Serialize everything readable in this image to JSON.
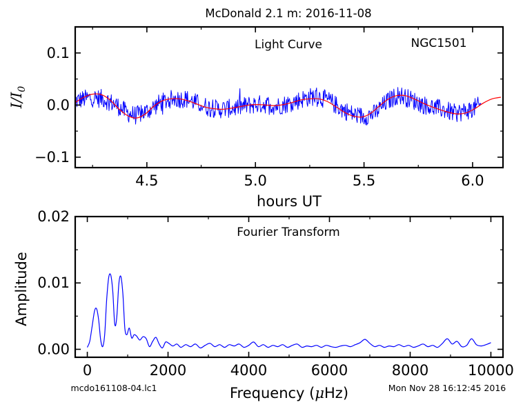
{
  "page": {
    "title": "McDonald 2.1 m:  2016-11-08",
    "footer_left": "mcdo161108-04.lc1",
    "footer_right": "Mon Nov 28 16:12:45 2016"
  },
  "chart_data": [
    {
      "type": "line",
      "title": "Light Curve",
      "annotation": "NGC1501",
      "xlabel": "hours UT",
      "ylabel_main": "I/I",
      "ylabel_sub": "0",
      "xlim": [
        4.17,
        6.14
      ],
      "ylim": [
        -0.12,
        0.15
      ],
      "xticks": [
        4.5,
        5.0,
        5.5,
        6.0
      ],
      "xticklabels": [
        "4.5",
        "5.0",
        "5.5",
        "6.0"
      ],
      "yticks": [
        -0.1,
        0.0,
        0.1
      ],
      "yticklabels": [
        "−0.1",
        "0.0",
        "0.1"
      ],
      "grid": false,
      "data_range": [
        4.17,
        6.04
      ],
      "noise_amplitude": 0.018,
      "series": [
        {
          "role": "observed light curve",
          "color": "#0000ff",
          "x": [
            4.17,
            4.24,
            4.3,
            4.36,
            4.41,
            4.45,
            4.5,
            4.56,
            4.62,
            4.68,
            4.73,
            4.78,
            4.83,
            4.9,
            4.97,
            5.04,
            5.1,
            5.16,
            5.22,
            5.28,
            5.34,
            5.4,
            5.45,
            5.5,
            5.55,
            5.61,
            5.66,
            5.72,
            5.79,
            5.86,
            5.92,
            5.98,
            6.04
          ],
          "y": [
            0.008,
            0.014,
            0.012,
            0.0,
            -0.015,
            -0.02,
            -0.012,
            0.004,
            0.012,
            0.012,
            0.004,
            -0.004,
            -0.008,
            -0.006,
            0.0,
            0.002,
            -0.002,
            0.004,
            0.012,
            0.018,
            0.008,
            -0.008,
            -0.018,
            -0.022,
            -0.016,
            0.008,
            0.02,
            0.01,
            -0.002,
            -0.008,
            -0.016,
            -0.01,
            0.0
          ]
        },
        {
          "role": "sinusoid fit",
          "color": "#ff0000",
          "x": [
            4.17,
            4.21,
            4.25,
            4.29,
            4.33,
            4.37,
            4.41,
            4.45,
            4.49,
            4.53,
            4.57,
            4.61,
            4.65,
            4.69,
            4.73,
            4.77,
            4.81,
            4.85,
            4.89,
            4.93,
            4.97,
            5.01,
            5.05,
            5.09,
            5.13,
            5.17,
            5.21,
            5.25,
            5.29,
            5.33,
            5.37,
            5.41,
            5.45,
            5.49,
            5.53,
            5.57,
            5.61,
            5.65,
            5.69,
            5.73,
            5.77,
            5.81,
            5.85,
            5.89,
            5.93,
            5.97,
            6.01,
            6.05,
            6.09,
            6.13
          ],
          "y": [
            0.005,
            0.015,
            0.021,
            0.02,
            0.01,
            -0.007,
            -0.02,
            -0.025,
            -0.018,
            -0.003,
            0.008,
            0.012,
            0.012,
            0.008,
            0.002,
            -0.004,
            -0.007,
            -0.008,
            -0.006,
            -0.003,
            0.0,
            0.001,
            0.0,
            -0.001,
            0.001,
            0.005,
            0.01,
            0.012,
            0.012,
            0.007,
            -0.003,
            -0.014,
            -0.021,
            -0.023,
            -0.016,
            -0.002,
            0.011,
            0.018,
            0.018,
            0.012,
            0.004,
            -0.003,
            -0.009,
            -0.014,
            -0.017,
            -0.015,
            -0.007,
            0.004,
            0.012,
            0.015
          ]
        }
      ]
    },
    {
      "type": "line",
      "title": "Fourier Transform",
      "xlabel_pre": "Frequency (",
      "xlabel_mu": "μ",
      "xlabel_post": "Hz)",
      "ylabel": "Amplitude",
      "xlim": [
        -300,
        10300
      ],
      "ylim": [
        -0.0012,
        0.02
      ],
      "xticks": [
        0,
        2000,
        4000,
        6000,
        8000,
        10000
      ],
      "xticklabels": [
        "0",
        "2000",
        "4000",
        "6000",
        "8000",
        "10000"
      ],
      "yticks": [
        0.0,
        0.01,
        0.02
      ],
      "yticklabels": [
        "0.00",
        "0.01",
        "0.02"
      ],
      "grid": false,
      "series": [
        {
          "role": "amplitude spectrum",
          "color": "#0000ff",
          "x": [
            0,
            60,
            120,
            180,
            230,
            280,
            330,
            380,
            430,
            480,
            530,
            580,
            630,
            680,
            730,
            780,
            830,
            880,
            930,
            980,
            1040,
            1100,
            1160,
            1220,
            1300,
            1380,
            1460,
            1540,
            1620,
            1700,
            1780,
            1860,
            1940,
            2020,
            2120,
            2220,
            2320,
            2440,
            2560,
            2680,
            2800,
            2920,
            3040,
            3160,
            3280,
            3400,
            3520,
            3640,
            3760,
            3880,
            4000,
            4120,
            4240,
            4360,
            4480,
            4600,
            4720,
            4840,
            4960,
            5080,
            5200,
            5320,
            5440,
            5560,
            5680,
            5800,
            5920,
            6040,
            6160,
            6280,
            6400,
            6520,
            6640,
            6760,
            6880,
            7000,
            7120,
            7240,
            7360,
            7480,
            7600,
            7720,
            7840,
            7960,
            8080,
            8200,
            8320,
            8440,
            8560,
            8680,
            8800,
            8920,
            9040,
            9160,
            9280,
            9400,
            9520,
            9640,
            9760,
            9880,
            10000
          ],
          "y": [
            0.0003,
            0.0012,
            0.0035,
            0.0058,
            0.0061,
            0.0045,
            0.0015,
            0.0004,
            0.0022,
            0.0075,
            0.0108,
            0.0112,
            0.0088,
            0.0038,
            0.0048,
            0.0098,
            0.011,
            0.0085,
            0.0032,
            0.0022,
            0.0032,
            0.0017,
            0.0022,
            0.002,
            0.0014,
            0.0019,
            0.0016,
            0.0004,
            0.0012,
            0.0018,
            0.0008,
            0.0002,
            0.0011,
            0.0009,
            0.0005,
            0.0008,
            0.0003,
            0.0007,
            0.0004,
            0.0008,
            0.0002,
            0.0006,
            0.0009,
            0.0004,
            0.0007,
            0.0003,
            0.0007,
            0.0005,
            0.0008,
            0.0003,
            0.0006,
            0.0011,
            0.0004,
            0.0007,
            0.0003,
            0.0006,
            0.0004,
            0.0007,
            0.0003,
            0.0006,
            0.0008,
            0.0003,
            0.0005,
            0.0004,
            0.0006,
            0.0003,
            0.0006,
            0.0004,
            0.0003,
            0.0005,
            0.0006,
            0.0004,
            0.0007,
            0.001,
            0.0015,
            0.0009,
            0.0004,
            0.0006,
            0.0003,
            0.0005,
            0.0004,
            0.0007,
            0.0004,
            0.0006,
            0.0003,
            0.0005,
            0.0008,
            0.0004,
            0.0006,
            0.0003,
            0.0009,
            0.0016,
            0.0008,
            0.0012,
            0.0004,
            0.0006,
            0.0016,
            0.0007,
            0.0005,
            0.0007,
            0.001
          ]
        }
      ]
    }
  ]
}
